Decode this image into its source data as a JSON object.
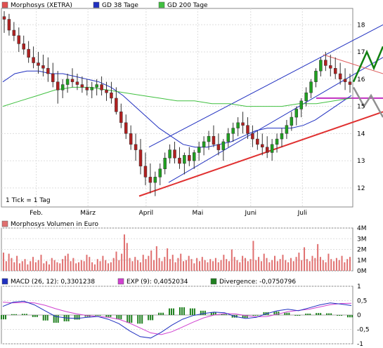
{
  "chart_data": [
    {
      "type": "line",
      "panel": "price",
      "legend": [
        {
          "label": "Morphosys (XETRA)",
          "color": "#e05050"
        },
        {
          "label": "GD 38 Tage",
          "color": "#2030c0"
        },
        {
          "label": "GD 200 Tage",
          "color": "#40c040"
        }
      ],
      "note": "1 Tick = 1 Tag",
      "x_labels": [
        "Feb.",
        "März",
        "April",
        "Mai",
        "Juni",
        "Juli"
      ],
      "x_label_days": [
        27,
        67,
        112,
        152,
        193,
        233
      ],
      "y_ticks": [
        12,
        13,
        14,
        15,
        16,
        17,
        18
      ],
      "ylim": [
        11.3,
        18.6
      ],
      "x_days_total": 272,
      "candles": [
        [
          18.3,
          18.5,
          17.7,
          18.2
        ],
        [
          18.2,
          18.4,
          17.6,
          17.8
        ],
        [
          17.8,
          18.1,
          17.4,
          17.6
        ],
        [
          17.6,
          17.9,
          17.0,
          17.3
        ],
        [
          17.3,
          17.6,
          16.9,
          17.1
        ],
        [
          17.1,
          17.4,
          16.6,
          16.8
        ],
        [
          16.8,
          17.2,
          16.4,
          16.6
        ],
        [
          16.6,
          17.0,
          16.2,
          16.5
        ],
        [
          16.5,
          16.9,
          16.1,
          16.4
        ],
        [
          16.4,
          16.8,
          15.9,
          16.2
        ],
        [
          16.2,
          16.6,
          15.7,
          15.9
        ],
        [
          15.9,
          16.3,
          15.1,
          15.6
        ],
        [
          15.6,
          16.0,
          15.3,
          15.8
        ],
        [
          15.8,
          16.2,
          15.5,
          16.0
        ],
        [
          16.0,
          16.4,
          15.7,
          15.9
        ],
        [
          15.9,
          16.2,
          15.6,
          15.8
        ],
        [
          15.8,
          16.1,
          15.5,
          15.7
        ],
        [
          15.7,
          16.0,
          15.4,
          15.6
        ],
        [
          15.6,
          15.9,
          15.3,
          15.7
        ],
        [
          15.7,
          16.0,
          15.4,
          15.8
        ],
        [
          15.8,
          16.1,
          15.4,
          15.6
        ],
        [
          15.6,
          15.9,
          15.2,
          15.5
        ],
        [
          15.5,
          15.9,
          15.1,
          15.3
        ],
        [
          15.3,
          15.7,
          14.7,
          14.8
        ],
        [
          14.8,
          15.1,
          14.2,
          14.4
        ],
        [
          14.4,
          14.7,
          13.8,
          14.0
        ],
        [
          14.0,
          14.3,
          13.4,
          13.6
        ],
        [
          13.6,
          14.0,
          13.0,
          13.4
        ],
        [
          13.4,
          13.8,
          12.5,
          12.8
        ],
        [
          12.8,
          13.3,
          12.1,
          12.4
        ],
        [
          12.4,
          12.9,
          11.8,
          12.2
        ],
        [
          12.2,
          12.6,
          11.7,
          12.4
        ],
        [
          12.4,
          12.9,
          12.1,
          12.7
        ],
        [
          12.7,
          13.3,
          12.5,
          13.1
        ],
        [
          13.1,
          13.6,
          12.9,
          13.4
        ],
        [
          13.4,
          13.7,
          12.9,
          13.1
        ],
        [
          13.1,
          13.5,
          12.7,
          12.9
        ],
        [
          12.9,
          13.3,
          12.5,
          13.2
        ],
        [
          13.2,
          13.5,
          12.8,
          13.0
        ],
        [
          13.0,
          13.4,
          12.7,
          13.3
        ],
        [
          13.3,
          13.7,
          13.0,
          13.5
        ],
        [
          13.5,
          13.9,
          13.2,
          13.7
        ],
        [
          13.7,
          14.1,
          13.4,
          13.9
        ],
        [
          13.9,
          14.3,
          13.5,
          13.6
        ],
        [
          13.6,
          14.0,
          13.2,
          13.4
        ],
        [
          13.4,
          13.8,
          13.0,
          13.7
        ],
        [
          13.7,
          14.2,
          13.5,
          14.0
        ],
        [
          14.0,
          14.4,
          13.7,
          14.2
        ],
        [
          14.2,
          14.6,
          13.9,
          14.4
        ],
        [
          14.4,
          14.8,
          14.0,
          14.3
        ],
        [
          14.3,
          14.6,
          13.8,
          14.0
        ],
        [
          14.0,
          14.3,
          13.5,
          13.8
        ],
        [
          13.8,
          14.1,
          13.4,
          13.6
        ],
        [
          13.6,
          14.0,
          13.2,
          13.5
        ],
        [
          13.5,
          13.9,
          13.1,
          13.3
        ],
        [
          13.3,
          13.8,
          13.0,
          13.6
        ],
        [
          13.6,
          14.0,
          13.3,
          13.8
        ],
        [
          13.8,
          14.2,
          13.5,
          14.0
        ],
        [
          14.0,
          14.5,
          13.8,
          14.3
        ],
        [
          14.3,
          14.8,
          14.1,
          14.6
        ],
        [
          14.6,
          15.0,
          14.3,
          14.9
        ],
        [
          14.9,
          15.3,
          14.6,
          15.2
        ],
        [
          15.2,
          15.7,
          15.0,
          15.5
        ],
        [
          15.5,
          16.0,
          15.3,
          15.9
        ],
        [
          15.9,
          16.4,
          15.7,
          16.3
        ],
        [
          16.3,
          16.8,
          16.1,
          16.7
        ],
        [
          16.7,
          17.0,
          16.3,
          16.5
        ],
        [
          16.5,
          16.9,
          16.1,
          16.4
        ],
        [
          16.4,
          16.8,
          16.0,
          16.2
        ],
        [
          16.2,
          16.6,
          15.8,
          16.0
        ],
        [
          16.0,
          16.4,
          15.6,
          15.9
        ],
        [
          15.9,
          16.2,
          15.5,
          15.8
        ]
      ],
      "ma38": [
        15.9,
        16.2,
        16.3,
        16.3,
        16.2,
        16.2,
        16.1,
        16.0,
        15.9,
        15.7,
        15.4,
        15.0,
        14.6,
        14.2,
        13.9,
        13.6,
        13.5,
        13.5,
        13.6,
        13.7,
        13.9,
        14.1,
        14.2,
        14.2,
        14.2,
        14.3,
        14.5,
        14.8,
        15.1,
        15.4
      ],
      "ma200": [
        15.0,
        15.2,
        15.4,
        15.6,
        15.7,
        15.7,
        15.6,
        15.5,
        15.4,
        15.3,
        15.2,
        15.2,
        15.1,
        15.1,
        15.0,
        15.0,
        15.0,
        15.1,
        15.1,
        15.2,
        15.3
      ]
    },
    {
      "type": "bar",
      "panel": "volume",
      "legend": [
        {
          "label": "Morphosys Volumen in Euro",
          "color": "#e07070"
        }
      ],
      "y_ticks": [
        "4M",
        "3M",
        "2M",
        "1M",
        "0M"
      ],
      "ylim": [
        0,
        4
      ],
      "values": [
        1.7,
        0.9,
        1.6,
        1.2,
        0.8,
        1.4,
        0.7,
        0.9,
        1.1,
        0.6,
        0.9,
        1.3,
        0.8,
        1.0,
        1.5,
        0.7,
        0.9,
        0.6,
        1.2,
        1.0,
        0.8,
        0.7,
        1.1,
        1.4,
        1.6,
        0.9,
        1.2,
        0.7,
        0.8,
        1.0,
        0.9,
        1.5,
        1.3,
        0.8,
        0.6,
        1.1,
        0.9,
        1.4,
        1.0,
        0.7,
        0.8,
        1.2,
        1.8,
        1.0,
        1.6,
        3.4,
        2.6,
        1.2,
        0.9,
        1.3,
        1.0,
        0.8,
        1.5,
        1.1,
        1.4,
        1.9,
        1.0,
        2.3,
        1.2,
        0.9,
        1.3,
        2.1,
        1.1,
        1.5,
        0.8,
        1.2,
        1.6,
        0.9,
        1.0,
        1.4,
        1.1,
        0.7,
        1.2,
        0.9,
        1.3,
        1.0,
        0.8,
        1.1,
        0.9,
        1.2,
        0.8,
        1.0,
        1.5,
        1.1,
        0.9,
        2.0,
        1.3,
        1.0,
        0.8,
        1.4,
        1.2,
        0.9,
        1.1,
        2.8,
        1.0,
        1.3,
        0.9,
        1.6,
        1.2,
        0.8,
        1.0,
        1.4,
        0.9,
        1.1,
        1.5,
        1.0,
        0.8,
        1.2,
        0.9,
        1.3,
        1.7,
        1.0,
        2.2,
        1.1,
        0.9,
        1.4,
        1.2,
        2.5,
        1.3,
        1.0,
        0.8,
        1.6,
        1.1,
        0.9,
        1.2,
        1.0,
        1.4,
        0.8,
        1.1,
        1.3
      ]
    },
    {
      "type": "line",
      "panel": "macd",
      "legend": [
        {
          "label": "MACD (26, 12): 0,3301238",
          "color": "#2030c0"
        },
        {
          "label": "EXP (9): 0,4052034",
          "color": "#d040d0"
        },
        {
          "label": "Divergence: -0,0750796",
          "color": "#208020"
        }
      ],
      "y_ticks": [
        "1",
        "0,5",
        "0",
        "-0,5",
        "-1"
      ],
      "ylim": [
        -1,
        1
      ],
      "macd": [
        0.3,
        0.45,
        0.48,
        0.35,
        0.15,
        -0.05,
        -0.1,
        -0.12,
        -0.08,
        -0.05,
        -0.15,
        -0.3,
        -0.55,
        -0.75,
        -0.8,
        -0.6,
        -0.35,
        -0.15,
        -0.02,
        0.05,
        0.1,
        0.08,
        -0.05,
        -0.12,
        -0.08,
        0.05,
        0.15,
        0.2,
        0.15,
        0.25,
        0.35,
        0.42,
        0.38,
        0.33
      ],
      "exp": [
        0.45,
        0.42,
        0.44,
        0.42,
        0.34,
        0.22,
        0.12,
        0.04,
        -0.02,
        -0.05,
        -0.08,
        -0.15,
        -0.28,
        -0.45,
        -0.62,
        -0.68,
        -0.58,
        -0.42,
        -0.25,
        -0.1,
        0.0,
        0.05,
        0.04,
        -0.02,
        -0.06,
        -0.05,
        0.03,
        0.12,
        0.16,
        0.2,
        0.28,
        0.36,
        0.4,
        0.41
      ],
      "divergence": [
        -0.15,
        0.03,
        0.04,
        -0.07,
        -0.19,
        -0.27,
        -0.22,
        -0.16,
        -0.06,
        0.0,
        -0.07,
        -0.15,
        -0.27,
        -0.3,
        -0.18,
        0.08,
        0.23,
        0.27,
        0.23,
        0.15,
        0.1,
        0.03,
        -0.09,
        -0.1,
        -0.02,
        0.1,
        0.12,
        0.08,
        -0.01,
        0.05,
        0.07,
        0.06,
        -0.02,
        -0.08
      ]
    }
  ]
}
